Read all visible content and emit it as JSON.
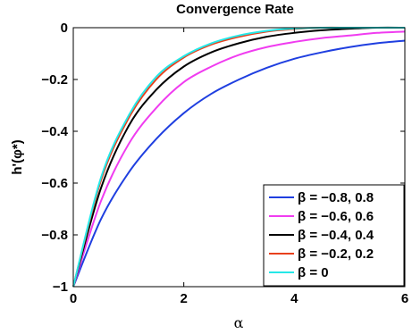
{
  "chart_data": {
    "type": "line",
    "title": "Convergence Rate",
    "xlabel": "α",
    "ylabel": "h'(φ*)",
    "xlim": [
      0,
      6
    ],
    "ylim": [
      -1,
      0
    ],
    "x_ticks": [
      0,
      2,
      4,
      6
    ],
    "y_ticks": [
      0,
      -0.2,
      -0.4,
      -0.6,
      -0.8,
      -1
    ],
    "x_tick_labels": [
      "0",
      "2",
      "4",
      "6"
    ],
    "y_tick_labels": [
      "0",
      "−0.2",
      "−0.4",
      "−0.6",
      "−0.8",
      "−1"
    ],
    "grid": false,
    "legend_position": "bottom-right",
    "series": [
      {
        "name": "β = −0.8, 0.8",
        "color": "#1f3fe0",
        "x": [
          0,
          0.5,
          1,
          1.5,
          2,
          2.5,
          3,
          3.5,
          4,
          4.5,
          5,
          5.5,
          6
        ],
        "y": [
          -1,
          -0.74,
          -0.56,
          -0.43,
          -0.33,
          -0.255,
          -0.2,
          -0.155,
          -0.12,
          -0.095,
          -0.075,
          -0.06,
          -0.05
        ]
      },
      {
        "name": "β = −0.6, 0.6",
        "color": "#f03cf0",
        "x": [
          0,
          0.5,
          1,
          1.5,
          2,
          2.5,
          3,
          3.5,
          4,
          4.5,
          5,
          5.5,
          6
        ],
        "y": [
          -1,
          -0.67,
          -0.45,
          -0.31,
          -0.21,
          -0.15,
          -0.105,
          -0.075,
          -0.055,
          -0.04,
          -0.03,
          -0.02,
          -0.015
        ]
      },
      {
        "name": "β = −0.4, 0.4",
        "color": "#000000",
        "x": [
          0,
          0.5,
          1,
          1.5,
          2,
          2.5,
          3,
          3.5,
          4,
          4.5,
          5,
          5.5,
          6
        ],
        "y": [
          -1,
          -0.62,
          -0.38,
          -0.24,
          -0.15,
          -0.095,
          -0.06,
          -0.035,
          -0.02,
          -0.01,
          -0.004,
          0,
          0
        ]
      },
      {
        "name": "β = −0.2, 0.2",
        "color": "#e8401c",
        "x": [
          0,
          0.5,
          1,
          1.5,
          2,
          2.5,
          3,
          3.5,
          4,
          4.5,
          5,
          5.5,
          6
        ],
        "y": [
          -1,
          -0.59,
          -0.35,
          -0.2,
          -0.115,
          -0.065,
          -0.035,
          -0.015,
          -0.005,
          0,
          0,
          0,
          0
        ]
      },
      {
        "name": "β = 0",
        "color": "#25e8e8",
        "x": [
          0,
          0.5,
          1,
          1.5,
          2,
          2.5,
          3,
          3.5,
          4,
          4.5,
          5,
          5.5,
          6
        ],
        "y": [
          -1,
          -0.58,
          -0.34,
          -0.19,
          -0.11,
          -0.06,
          -0.03,
          -0.012,
          -0.003,
          0,
          0,
          0,
          0
        ]
      }
    ]
  }
}
